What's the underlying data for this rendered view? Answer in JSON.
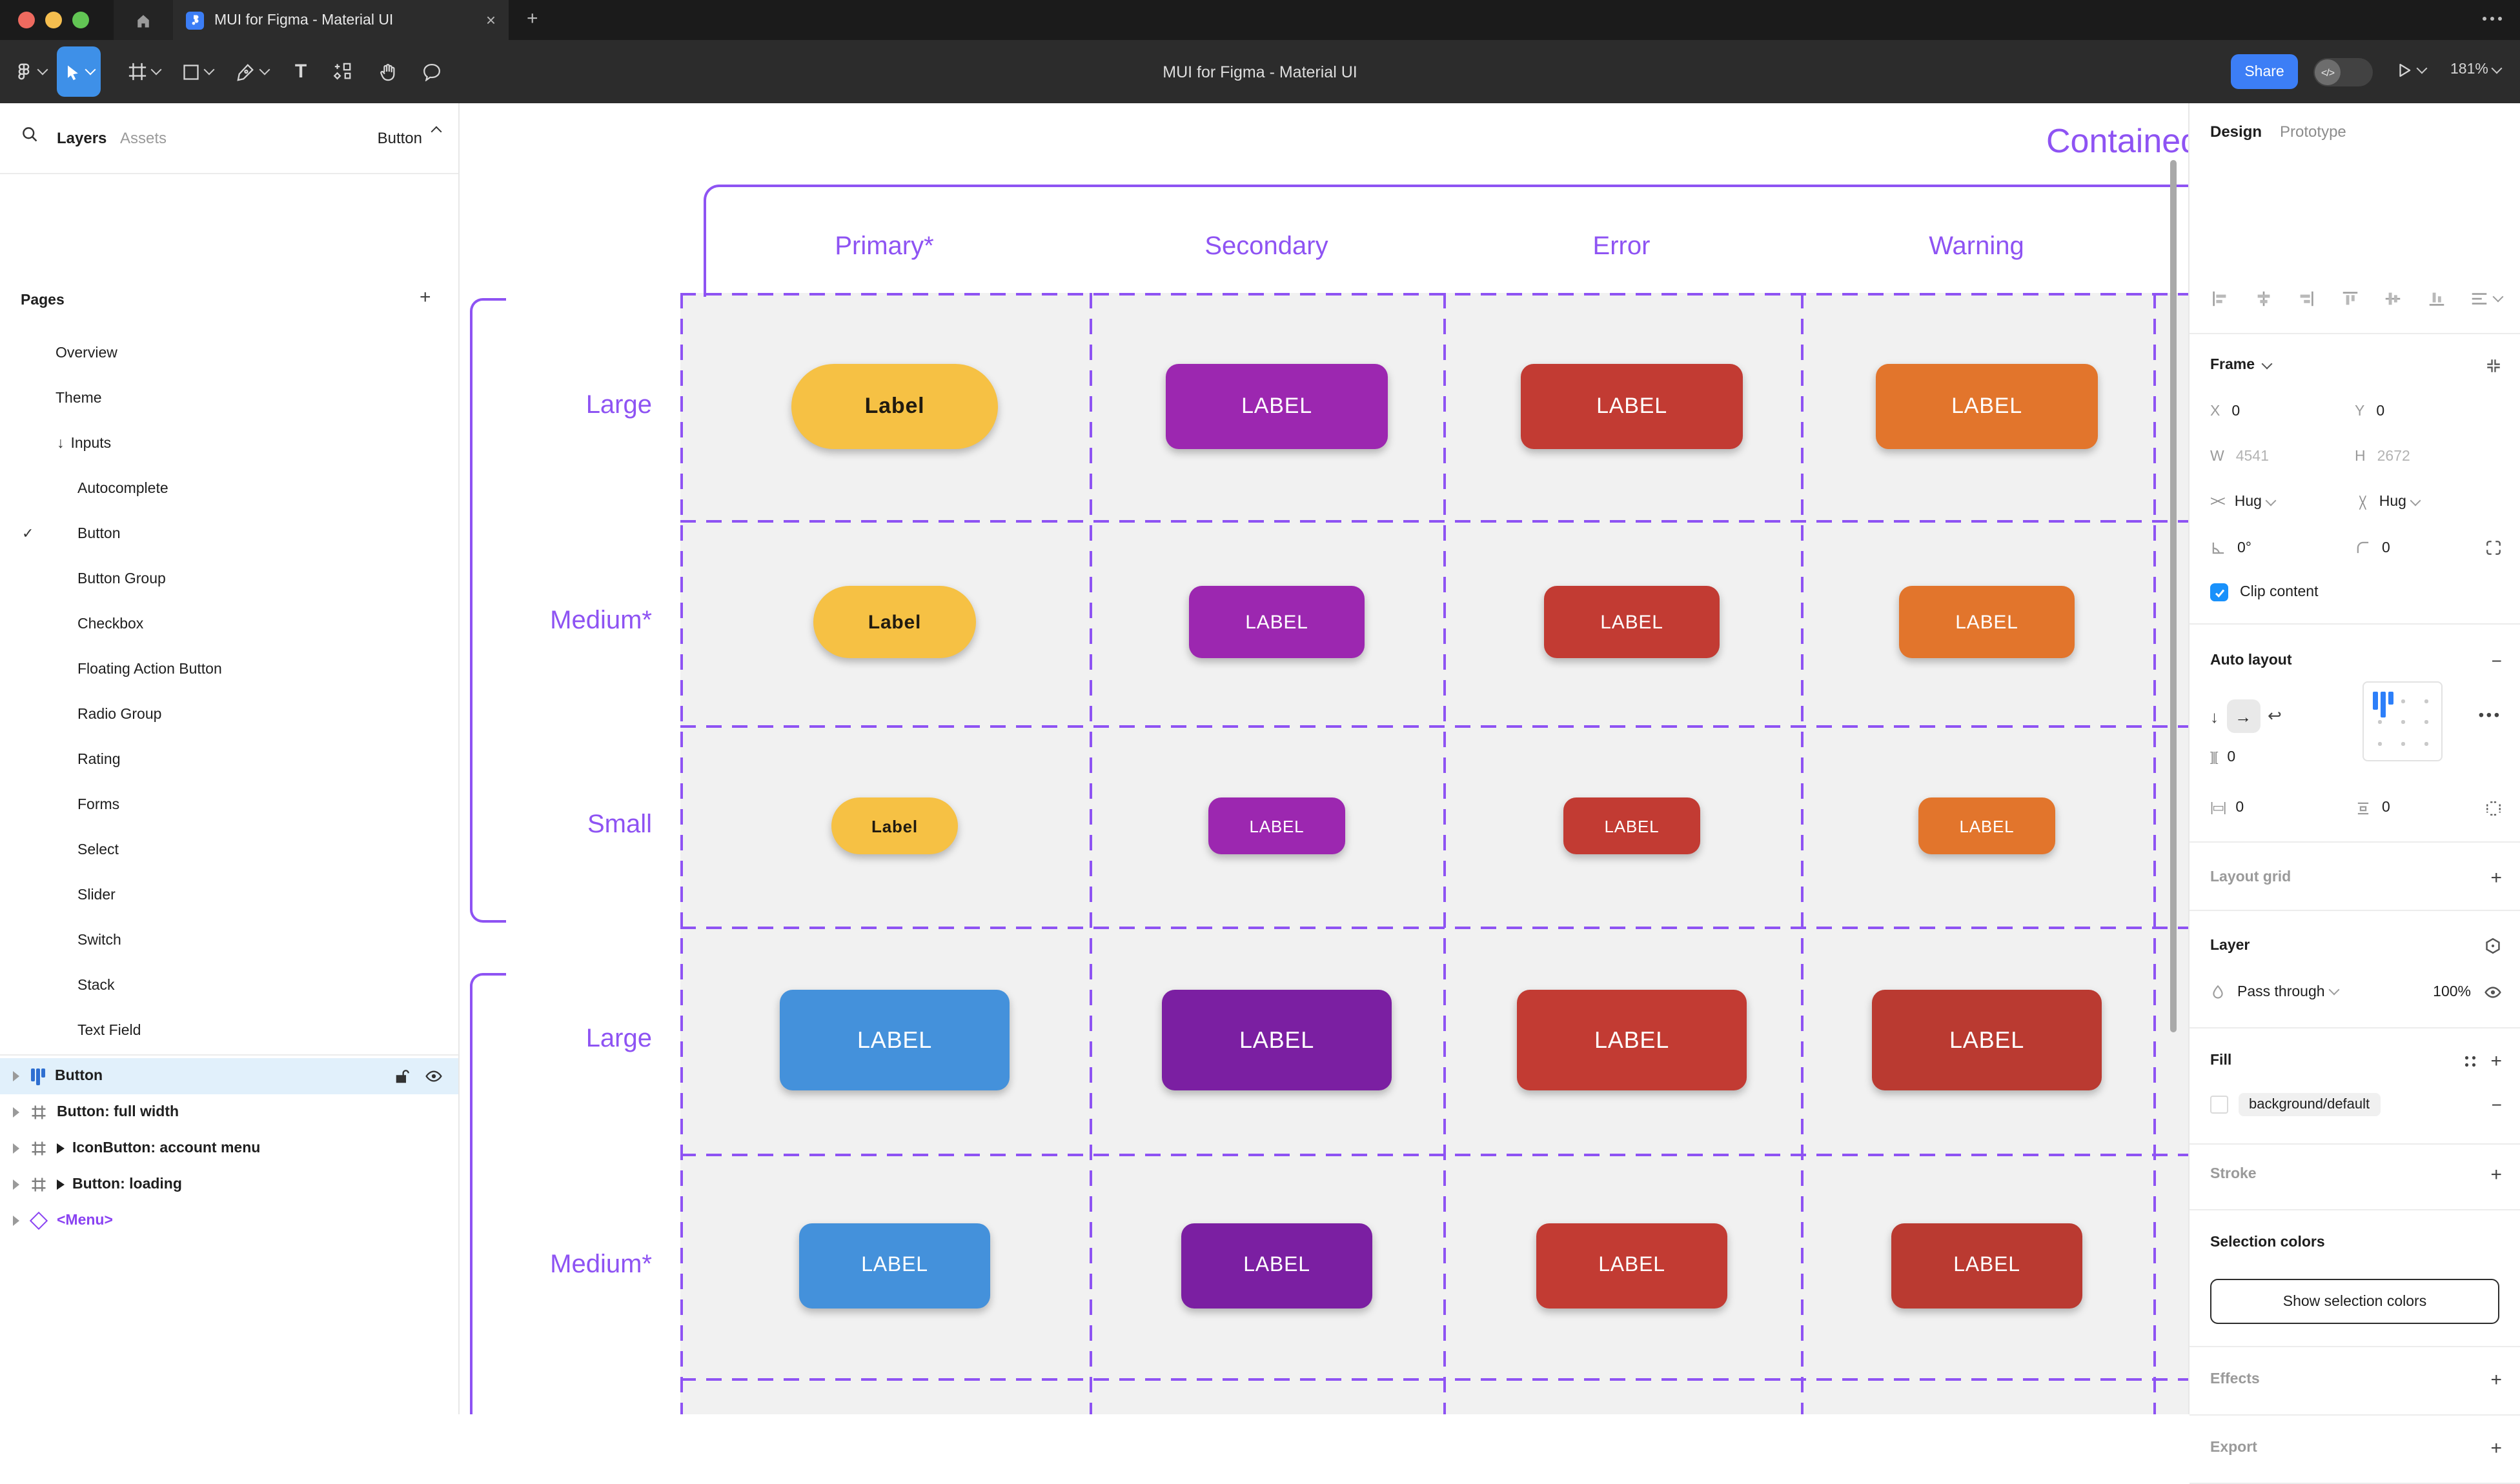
{
  "window": {
    "tab_title": "MUI for Figma - Material UI",
    "doc_title": "MUI for Figma - Material UI",
    "share_label": "Share",
    "zoom_level": "181%",
    "close_glyph": "×",
    "new_tab_glyph": "+"
  },
  "left_panel": {
    "tabs": {
      "layers": "Layers",
      "assets": "Assets"
    },
    "filter_label": "Button",
    "pages_header": "Pages",
    "add_page_glyph": "+",
    "pages": [
      {
        "label": "Overview",
        "indent": 43
      },
      {
        "label": "Theme",
        "indent": 43
      },
      {
        "label": "Inputs",
        "indent": 44,
        "arrow": "↓"
      },
      {
        "label": "Autocomplete",
        "indent": 60
      },
      {
        "label": "Button",
        "indent": 60,
        "check": "✓"
      },
      {
        "label": "Button Group",
        "indent": 60
      },
      {
        "label": "Checkbox",
        "indent": 60
      },
      {
        "label": "Floating Action Button",
        "indent": 60
      },
      {
        "label": "Radio Group",
        "indent": 60
      },
      {
        "label": "Rating",
        "indent": 60
      },
      {
        "label": "Forms",
        "indent": 60
      },
      {
        "label": "Select",
        "indent": 60
      },
      {
        "label": "Slider",
        "indent": 60
      },
      {
        "label": "Switch",
        "indent": 60
      },
      {
        "label": "Stack",
        "indent": 60
      },
      {
        "label": "Text Field",
        "indent": 60
      }
    ],
    "layers": [
      {
        "label": "Button",
        "icon": "autolayout",
        "selected": true
      },
      {
        "label": "Button: full width",
        "icon": "frame"
      },
      {
        "label": "IconButton: account menu",
        "icon": "frame",
        "component": true
      },
      {
        "label": "Button: loading",
        "icon": "frame",
        "component": true
      },
      {
        "label": "<Menu>",
        "icon": "diamond",
        "purple": "#8a43f2"
      }
    ]
  },
  "right_panel": {
    "tabs": {
      "design": "Design",
      "prototype": "Prototype"
    },
    "frame": {
      "title": "Frame",
      "x_label": "X",
      "x_value": "0",
      "y_label": "Y",
      "y_value": "0",
      "w_label": "W",
      "w_value": "4541",
      "h_label": "H",
      "h_value": "2672",
      "hug_h": "Hug",
      "hug_v": "Hug",
      "rotation": "0°",
      "corner_radius": "0",
      "clip_label": "Clip content"
    },
    "auto_layout": {
      "title": "Auto layout",
      "gap": "0",
      "padding_h": "0",
      "padding_v": "0"
    },
    "layout_grid": {
      "title": "Layout grid"
    },
    "layer": {
      "title": "Layer",
      "blend_mode": "Pass through",
      "opacity": "100%"
    },
    "fill": {
      "title": "Fill",
      "token": "background/default"
    },
    "stroke": {
      "title": "Stroke"
    },
    "selection_colors": {
      "title": "Selection colors",
      "button_label": "Show selection colors"
    },
    "effects": {
      "title": "Effects"
    },
    "export": {
      "title": "Export"
    }
  },
  "canvas": {
    "frame_title": "Contained",
    "accent_purple": "#8e53f3",
    "grid_bg": "#f1f1f1",
    "columns": [
      "Primary*",
      "Secondary",
      "Error",
      "Warning"
    ],
    "rows": [
      {
        "label": "Large",
        "size": "lg",
        "buttons": [
          {
            "text": "Label",
            "bg": "#f6c144",
            "fg": "#211b10",
            "pill": true
          },
          {
            "text": "LABEL",
            "bg": "#9c27b0",
            "fg": "#ffffff"
          },
          {
            "text": "LABEL",
            "bg": "#c23b33",
            "fg": "#ffffff"
          },
          {
            "text": "LABEL",
            "bg": "#e2752c",
            "fg": "#ffffff"
          }
        ]
      },
      {
        "label": "Medium*",
        "size": "md",
        "buttons": [
          {
            "text": "Label",
            "bg": "#f6c144",
            "fg": "#211b10",
            "pill": true
          },
          {
            "text": "LABEL",
            "bg": "#9c27b0",
            "fg": "#ffffff"
          },
          {
            "text": "LABEL",
            "bg": "#c23b33",
            "fg": "#ffffff"
          },
          {
            "text": "LABEL",
            "bg": "#e2752c",
            "fg": "#ffffff"
          }
        ]
      },
      {
        "label": "Small",
        "size": "sm",
        "buttons": [
          {
            "text": "Label",
            "bg": "#f6c144",
            "fg": "#211b10",
            "pill": true
          },
          {
            "text": "LABEL",
            "bg": "#9c27b0",
            "fg": "#ffffff"
          },
          {
            "text": "LABEL",
            "bg": "#c23b33",
            "fg": "#ffffff"
          },
          {
            "text": "LABEL",
            "bg": "#e2752c",
            "fg": "#ffffff"
          }
        ]
      },
      {
        "label": "Large",
        "size": "lg2",
        "buttons": [
          {
            "text": "LABEL",
            "bg": "#4491db",
            "fg": "#ffffff"
          },
          {
            "text": "LABEL",
            "bg": "#7b1fa2",
            "fg": "#ffffff"
          },
          {
            "text": "LABEL",
            "bg": "#c23b33",
            "fg": "#ffffff"
          },
          {
            "text": "LABEL",
            "bg": "#ba3a31",
            "fg": "#ffffff"
          }
        ]
      },
      {
        "label": "Medium*",
        "size": "md2",
        "buttons": [
          {
            "text": "LABEL",
            "bg": "#4491db",
            "fg": "#ffffff"
          },
          {
            "text": "LABEL",
            "bg": "#7b1fa2",
            "fg": "#ffffff"
          },
          {
            "text": "LABEL",
            "bg": "#c23b33",
            "fg": "#ffffff"
          },
          {
            "text": "LABEL",
            "bg": "#ba3a31",
            "fg": "#ffffff"
          }
        ]
      }
    ]
  }
}
